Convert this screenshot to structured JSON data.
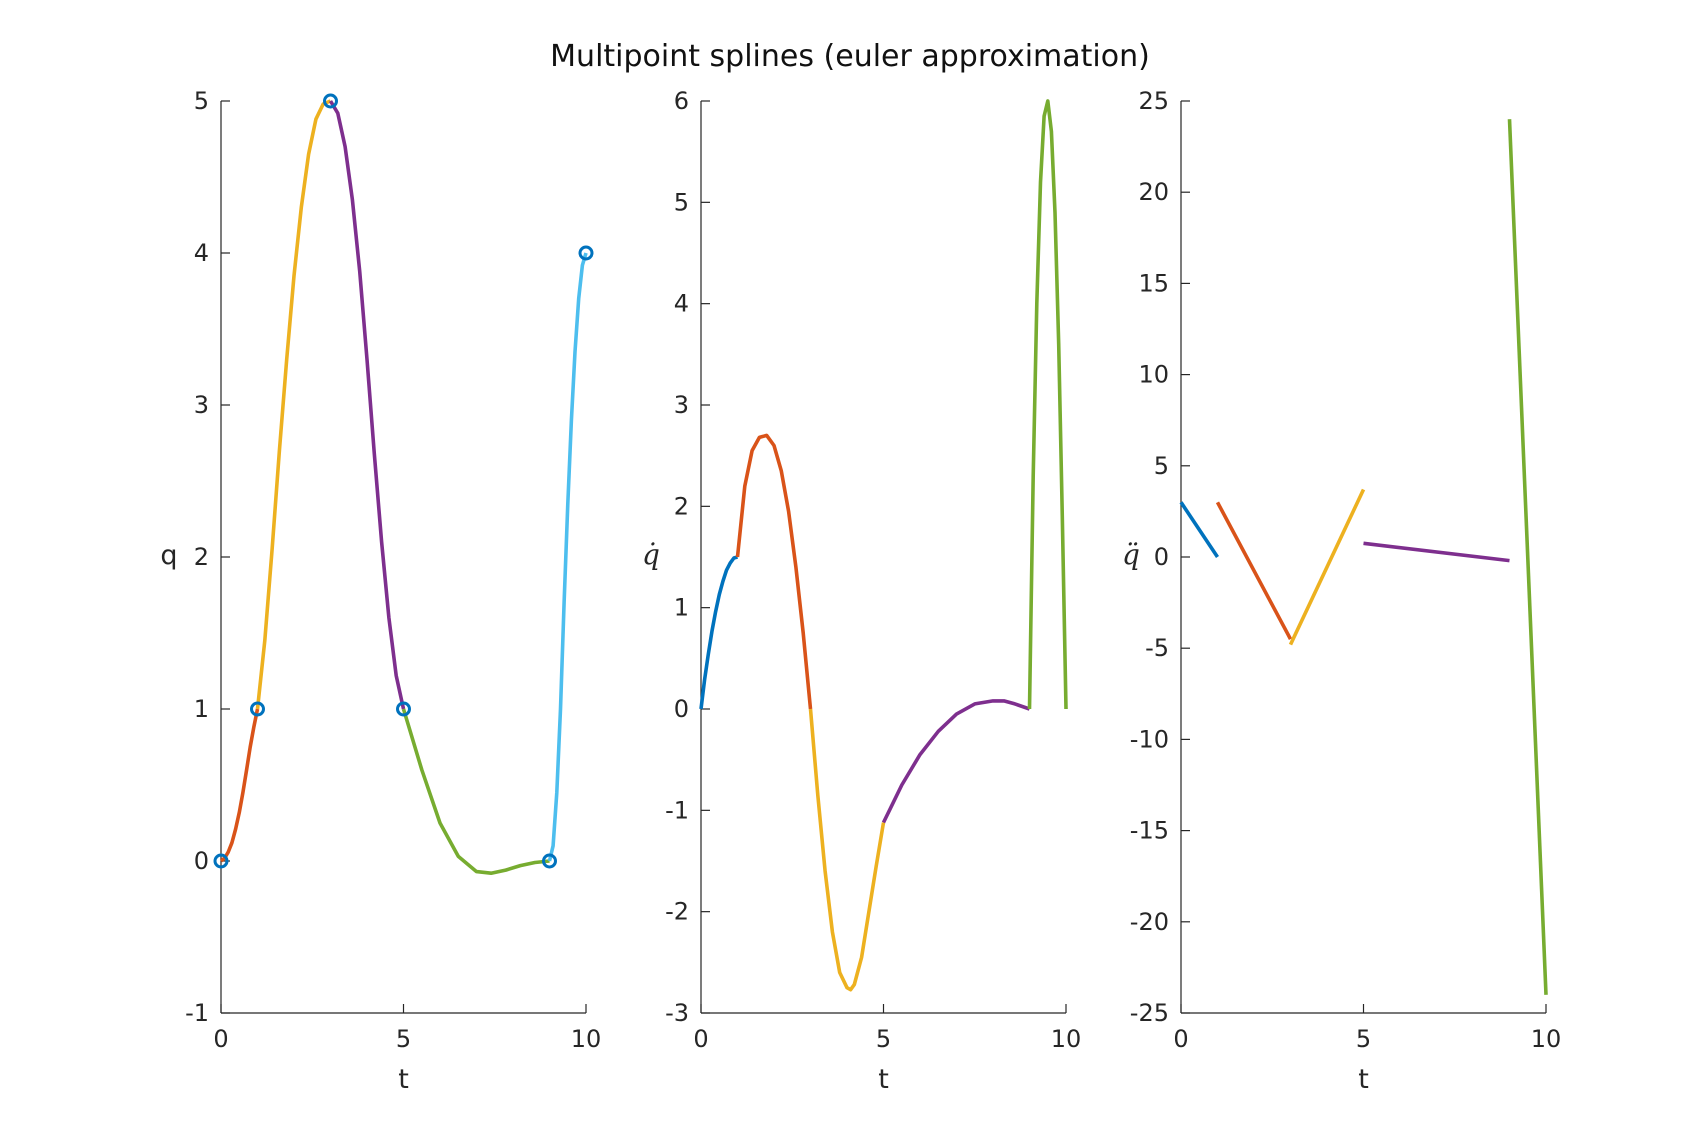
{
  "figure": {
    "title": "Multipoint splines (euler approximation)"
  },
  "colors": {
    "seg1": "#0072BD",
    "seg2": "#D95319",
    "seg3": "#EDB120",
    "seg4": "#7E2F8E",
    "seg5": "#77AC30",
    "seg6": "#4DBEEE",
    "axis": "#262626"
  },
  "chart_data": [
    {
      "type": "line",
      "title": "",
      "xlabel": "t",
      "ylabel": "q",
      "ylabel_style": "plain",
      "xlim": [
        0,
        10
      ],
      "ylim": [
        -1,
        5
      ],
      "xticks": [
        0,
        5,
        10
      ],
      "yticks": [
        -1,
        0,
        1,
        2,
        3,
        4,
        5
      ],
      "grid": false,
      "markers": {
        "x": [
          0,
          1,
          3,
          5,
          9,
          10
        ],
        "y": [
          0,
          1,
          5,
          1,
          0,
          4
        ],
        "shape": "circle"
      },
      "series": [
        {
          "color": "seg2",
          "x": [
            0,
            0.1,
            0.2,
            0.3,
            0.4,
            0.5,
            0.6,
            0.7,
            0.8,
            0.9,
            1.0
          ],
          "y": [
            0,
            0.02,
            0.06,
            0.12,
            0.21,
            0.32,
            0.45,
            0.6,
            0.75,
            0.88,
            1.0
          ]
        },
        {
          "color": "seg3",
          "x": [
            1.0,
            1.2,
            1.4,
            1.6,
            1.8,
            2.0,
            2.2,
            2.4,
            2.6,
            2.8,
            3.0
          ],
          "y": [
            1.0,
            1.45,
            2.05,
            2.7,
            3.3,
            3.85,
            4.3,
            4.65,
            4.88,
            4.98,
            5.0
          ]
        },
        {
          "color": "seg4",
          "x": [
            3.0,
            3.2,
            3.4,
            3.6,
            3.8,
            4.0,
            4.2,
            4.4,
            4.6,
            4.8,
            5.0
          ],
          "y": [
            5.0,
            4.92,
            4.7,
            4.35,
            3.88,
            3.3,
            2.68,
            2.1,
            1.6,
            1.22,
            1.0
          ]
        },
        {
          "color": "seg5",
          "x": [
            5.0,
            5.5,
            6.0,
            6.5,
            7.0,
            7.4,
            7.8,
            8.2,
            8.6,
            9.0
          ],
          "y": [
            1.0,
            0.6,
            0.25,
            0.03,
            -0.07,
            -0.08,
            -0.06,
            -0.03,
            -0.01,
            0.0
          ]
        },
        {
          "color": "seg6",
          "x": [
            9.0,
            9.1,
            9.2,
            9.3,
            9.4,
            9.5,
            9.6,
            9.7,
            9.8,
            9.9,
            10.0
          ],
          "y": [
            0.0,
            0.1,
            0.45,
            1.0,
            1.7,
            2.35,
            2.9,
            3.35,
            3.7,
            3.92,
            4.0
          ]
        }
      ]
    },
    {
      "type": "line",
      "title": "",
      "xlabel": "t",
      "ylabel": "q̇",
      "ylabel_style": "math",
      "xlim": [
        0,
        10
      ],
      "ylim": [
        -3,
        6
      ],
      "xticks": [
        0,
        5,
        10
      ],
      "yticks": [
        -3,
        -2,
        -1,
        0,
        1,
        2,
        3,
        4,
        5,
        6
      ],
      "grid": false,
      "series": [
        {
          "color": "seg1",
          "x": [
            0,
            0.1,
            0.2,
            0.3,
            0.4,
            0.5,
            0.6,
            0.7,
            0.8,
            0.9,
            1.0
          ],
          "y": [
            0,
            0.29,
            0.54,
            0.77,
            0.96,
            1.13,
            1.26,
            1.37,
            1.44,
            1.49,
            1.5
          ]
        },
        {
          "color": "seg2",
          "x": [
            1.0,
            1.2,
            1.4,
            1.6,
            1.8,
            2.0,
            2.2,
            2.4,
            2.6,
            2.8,
            3.0
          ],
          "y": [
            1.5,
            2.2,
            2.55,
            2.68,
            2.7,
            2.6,
            2.35,
            1.95,
            1.4,
            0.75,
            0.0
          ]
        },
        {
          "color": "seg3",
          "x": [
            3.0,
            3.2,
            3.4,
            3.6,
            3.8,
            4.0,
            4.1,
            4.2,
            4.4,
            4.6,
            4.8,
            5.0
          ],
          "y": [
            0.0,
            -0.85,
            -1.6,
            -2.2,
            -2.6,
            -2.75,
            -2.77,
            -2.72,
            -2.45,
            -2.0,
            -1.55,
            -1.12
          ]
        },
        {
          "color": "seg4",
          "x": [
            5.0,
            5.5,
            6.0,
            6.5,
            7.0,
            7.5,
            8.0,
            8.3,
            8.6,
            9.0
          ],
          "y": [
            -1.12,
            -0.75,
            -0.45,
            -0.22,
            -0.05,
            0.05,
            0.08,
            0.08,
            0.05,
            0.0
          ]
        },
        {
          "color": "seg5",
          "x": [
            9.0,
            9.1,
            9.2,
            9.3,
            9.4,
            9.5,
            9.6,
            9.7,
            9.8,
            9.9,
            10.0
          ],
          "y": [
            0.0,
            2.3,
            4.0,
            5.2,
            5.85,
            6.0,
            5.7,
            4.9,
            3.6,
            1.9,
            0.0
          ]
        }
      ]
    },
    {
      "type": "line",
      "title": "",
      "xlabel": "t",
      "ylabel": "q̈",
      "ylabel_style": "math",
      "xlim": [
        0,
        10
      ],
      "ylim": [
        -25,
        25
      ],
      "xticks": [
        0,
        5,
        10
      ],
      "yticks": [
        -25,
        -20,
        -15,
        -10,
        -5,
        0,
        5,
        10,
        15,
        20,
        25
      ],
      "grid": false,
      "series": [
        {
          "color": "seg1",
          "x": [
            0,
            1.0
          ],
          "y": [
            3.0,
            0.0
          ]
        },
        {
          "color": "seg2",
          "x": [
            1.0,
            3.0
          ],
          "y": [
            3.0,
            -4.5
          ]
        },
        {
          "color": "seg3",
          "x": [
            3.0,
            5.0
          ],
          "y": [
            -4.8,
            3.7
          ]
        },
        {
          "color": "seg4",
          "x": [
            5.0,
            9.0
          ],
          "y": [
            0.75,
            -0.2
          ]
        },
        {
          "color": "seg5",
          "x": [
            9.0,
            10.0
          ],
          "y": [
            24.0,
            -24.0
          ]
        }
      ]
    }
  ]
}
